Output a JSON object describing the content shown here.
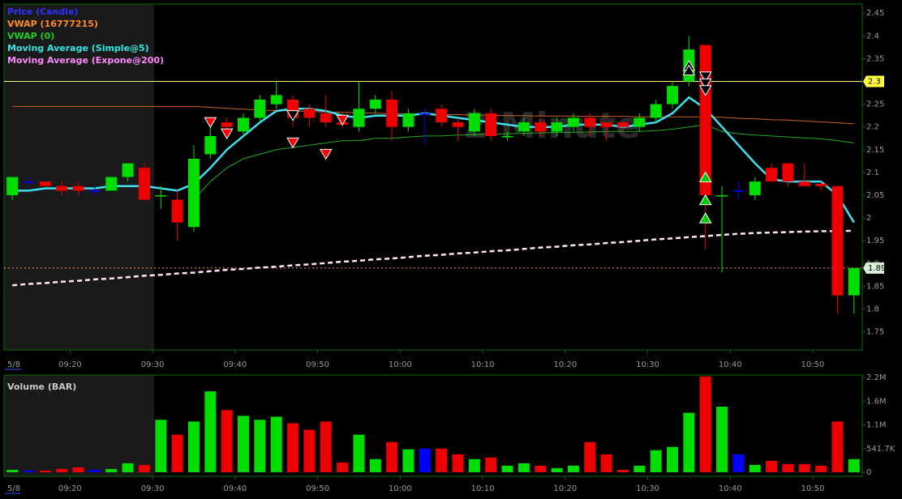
{
  "chart_data": [
    {
      "type": "candlestick",
      "watermark": "2 Minute",
      "date_label": "5/8",
      "x": [
        "09:13",
        "09:15",
        "09:17",
        "09:19",
        "09:21",
        "09:23",
        "09:25",
        "09:27",
        "09:29",
        "09:31",
        "09:33",
        "09:35",
        "09:37",
        "09:39",
        "09:41",
        "09:43",
        "09:45",
        "09:47",
        "09:49",
        "09:51",
        "09:53",
        "09:55",
        "09:57",
        "09:59",
        "10:01",
        "10:03",
        "10:05",
        "10:07",
        "10:09",
        "10:11",
        "10:13",
        "10:15",
        "10:17",
        "10:19",
        "10:21",
        "10:23",
        "10:25",
        "10:27",
        "10:29",
        "10:31",
        "10:33",
        "10:35",
        "10:37",
        "10:39",
        "10:41",
        "10:43",
        "10:45",
        "10:47",
        "10:49",
        "10:51",
        "10:53",
        "10:55"
      ],
      "xlim": [
        "09:12",
        "10:56"
      ],
      "xticks": [
        "09:20",
        "09:30",
        "09:40",
        "09:50",
        "10:00",
        "10:10",
        "10:20",
        "10:30",
        "10:40",
        "10:50"
      ],
      "ylim": [
        1.71,
        2.47
      ],
      "yticks": [
        1.75,
        1.8,
        1.85,
        1.9,
        1.95,
        2,
        2.05,
        2.1,
        2.15,
        2.2,
        2.25,
        2.3,
        2.35,
        2.4,
        2.45
      ],
      "series": [
        {
          "name": "Price (Candle)",
          "type": "candlestick",
          "color": "#3030ff",
          "open": [
            2.05,
            2.08,
            2.08,
            2.07,
            2.07,
            2.06,
            2.06,
            2.09,
            2.11,
            2.05,
            2.04,
            1.98,
            2.14,
            2.21,
            2.19,
            2.22,
            2.25,
            2.26,
            2.24,
            2.23,
            2.21,
            2.2,
            2.24,
            2.26,
            2.2,
            2.23,
            2.24,
            2.21,
            2.19,
            2.23,
            2.18,
            2.19,
            2.21,
            2.19,
            2.2,
            2.22,
            2.21,
            2.21,
            2.2,
            2.22,
            2.25,
            2.3,
            2.38,
            2.05,
            2.06,
            2.05,
            2.11,
            2.12,
            2.08,
            2.075,
            2.07,
            1.83
          ],
          "high": [
            2.09,
            2.09,
            2.08,
            2.08,
            2.08,
            2.07,
            2.09,
            2.12,
            2.12,
            2.07,
            2.06,
            2.16,
            2.2,
            2.22,
            2.23,
            2.27,
            2.3,
            2.27,
            2.25,
            2.27,
            2.22,
            2.3,
            2.27,
            2.28,
            2.24,
            2.24,
            2.25,
            2.22,
            2.24,
            2.24,
            2.19,
            2.22,
            2.22,
            2.22,
            2.23,
            2.23,
            2.21,
            2.21,
            2.23,
            2.26,
            2.3,
            2.4,
            2.38,
            2.07,
            2.08,
            2.09,
            2.12,
            2.12,
            2.12,
            2.08,
            2.07,
            1.89
          ],
          "low": [
            2.04,
            2.07,
            2.07,
            2.05,
            2.05,
            2.05,
            2.06,
            2.08,
            2.04,
            2.02,
            1.95,
            1.97,
            2.13,
            2.18,
            2.18,
            2.21,
            2.24,
            2.2,
            2.2,
            2.2,
            2.2,
            2.19,
            2.23,
            2.17,
            2.19,
            2.16,
            2.2,
            2.17,
            2.18,
            2.17,
            2.17,
            2.18,
            2.18,
            2.18,
            2.19,
            2.18,
            2.17,
            2.19,
            2.19,
            2.21,
            2.24,
            2.29,
            1.93,
            1.88,
            2.04,
            2.04,
            2.08,
            2.07,
            2.07,
            2.06,
            1.79,
            1.79
          ],
          "close": [
            2.09,
            2.08,
            2.07,
            2.06,
            2.06,
            2.06,
            2.09,
            2.12,
            2.04,
            2.05,
            1.99,
            2.13,
            2.18,
            2.2,
            2.22,
            2.26,
            2.27,
            2.22,
            2.22,
            2.21,
            2.205,
            2.24,
            2.26,
            2.2,
            2.23,
            2.23,
            2.21,
            2.2,
            2.23,
            2.18,
            2.18,
            2.21,
            2.19,
            2.21,
            2.22,
            2.2,
            2.2,
            2.2,
            2.22,
            2.25,
            2.29,
            2.37,
            2.05,
            2.05,
            2.06,
            2.08,
            2.08,
            2.08,
            2.07,
            2.07,
            1.83,
            1.89
          ],
          "colors": [
            "#00dd00",
            "#0000ff",
            "#ee0000",
            "#ee0000",
            "#ee0000",
            "#0000ff",
            "#00dd00",
            "#00dd00",
            "#ee0000",
            "#00dd00",
            "#ee0000",
            "#00dd00",
            "#00dd00",
            "#ee0000",
            "#00dd00",
            "#00dd00",
            "#00dd00",
            "#ee0000",
            "#ee0000",
            "#ee0000",
            "#ee0000",
            "#00dd00",
            "#00dd00",
            "#ee0000",
            "#00dd00",
            "#0000ff",
            "#ee0000",
            "#ee0000",
            "#00dd00",
            "#ee0000",
            "#00dd00",
            "#00dd00",
            "#ee0000",
            "#00dd00",
            "#00dd00",
            "#ee0000",
            "#ee0000",
            "#ee0000",
            "#00dd00",
            "#00dd00",
            "#00dd00",
            "#00dd00",
            "#ee0000",
            "#00dd00",
            "#0000ff",
            "#00dd00",
            "#ee0000",
            "#ee0000",
            "#ee0000",
            "#ee0000",
            "#ee0000",
            "#00dd00"
          ]
        },
        {
          "name": "VWAP (16777215)",
          "type": "line",
          "color": "#ff8c2a",
          "line_color": "#c8641e",
          "width": 1,
          "dashed": false,
          "values": [
            2.245,
            2.245,
            2.245,
            2.245,
            2.245,
            2.245,
            2.245,
            2.245,
            2.245,
            2.245,
            2.245,
            2.245,
            2.243,
            2.241,
            2.239,
            2.237,
            2.236,
            2.235,
            2.234,
            2.233,
            2.232,
            2.231,
            2.23,
            2.229,
            2.228,
            2.228,
            2.227,
            2.227,
            2.226,
            2.226,
            2.225,
            2.225,
            2.224,
            2.224,
            2.224,
            2.223,
            2.223,
            2.223,
            2.222,
            2.222,
            2.222,
            2.222,
            2.222,
            2.221,
            2.219,
            2.218,
            2.216,
            2.215,
            2.213,
            2.211,
            2.209,
            2.207
          ]
        },
        {
          "name": "VWAP (0)",
          "type": "line",
          "color": "#22cc22",
          "line_color": "#22aa22",
          "width": 1,
          "dashed": false,
          "values": [
            null,
            null,
            null,
            null,
            null,
            null,
            null,
            null,
            null,
            null,
            null,
            2.04,
            2.08,
            2.11,
            2.13,
            2.14,
            2.15,
            2.155,
            2.16,
            2.165,
            2.17,
            2.17,
            2.175,
            2.175,
            2.178,
            2.18,
            2.18,
            2.182,
            2.183,
            2.184,
            2.185,
            2.186,
            2.187,
            2.188,
            2.188,
            2.189,
            2.19,
            2.19,
            2.19,
            2.192,
            2.195,
            2.2,
            2.205,
            2.19,
            2.185,
            2.182,
            2.18,
            2.178,
            2.176,
            2.174,
            2.17,
            2.165
          ]
        },
        {
          "name": "Moving Average (Simple@5)",
          "type": "line",
          "color": "#33e6e6",
          "line_color": "#40e0f0",
          "width": 2.5,
          "dashed": false,
          "values": [
            2.06,
            2.06,
            2.065,
            2.065,
            2.065,
            2.065,
            2.07,
            2.07,
            2.07,
            2.065,
            2.06,
            2.075,
            2.11,
            2.15,
            2.18,
            2.21,
            2.235,
            2.24,
            2.24,
            2.235,
            2.225,
            2.22,
            2.225,
            2.225,
            2.225,
            2.23,
            2.225,
            2.22,
            2.215,
            2.21,
            2.205,
            2.2,
            2.2,
            2.2,
            2.205,
            2.205,
            2.205,
            2.2,
            2.205,
            2.21,
            2.23,
            2.265,
            2.24,
            2.2,
            2.16,
            2.12,
            2.085,
            2.08,
            2.08,
            2.08,
            2.05,
            1.99
          ]
        },
        {
          "name": "Moving Average (Expone@200)",
          "type": "line",
          "color": "#ff88ff",
          "line_color": "#ffe6f6",
          "width": 2.5,
          "dashed": true,
          "values": [
            1.852,
            1.855,
            1.857,
            1.86,
            1.862,
            1.865,
            1.867,
            1.87,
            1.873,
            1.875,
            1.878,
            1.88,
            1.883,
            1.886,
            1.888,
            1.891,
            1.893,
            1.896,
            1.898,
            1.901,
            1.904,
            1.906,
            1.909,
            1.911,
            1.914,
            1.917,
            1.919,
            1.922,
            1.924,
            1.927,
            1.929,
            1.932,
            1.935,
            1.937,
            1.94,
            1.942,
            1.945,
            1.947,
            1.95,
            1.953,
            1.955,
            1.958,
            1.96,
            1.963,
            1.965,
            1.967,
            1.968,
            1.969,
            1.97,
            1.971,
            1.971,
            1.972
          ]
        }
      ],
      "signals": [
        {
          "shape": "down",
          "fill": "#ff0000",
          "stroke": "#ffffff",
          "x": [
            "09:37",
            "09:39",
            "09:47",
            "09:51",
            "09:53"
          ],
          "values": [
            2.21,
            2.185,
            2.165,
            2.14,
            2.215
          ]
        },
        {
          "shape": "down",
          "fill": "#000000",
          "stroke": "#ffffff",
          "x": [
            "09:47",
            "10:37",
            "10:37",
            "10:37"
          ],
          "values": [
            2.225,
            2.31,
            2.295,
            2.28
          ]
        },
        {
          "shape": "up",
          "fill": "#000000",
          "stroke": "#ffffff",
          "x": [
            "10:35",
            "10:35"
          ],
          "values": [
            2.335,
            2.325
          ]
        },
        {
          "shape": "up",
          "fill": "#00cc00",
          "stroke": "#ffffff",
          "x": [
            "10:37",
            "10:37",
            "10:37"
          ],
          "values": [
            2.09,
            2.04,
            2.0
          ]
        }
      ],
      "hlines": [
        {
          "value": 2.3,
          "color": "#ffff80",
          "dashed": false,
          "label_bg": "#ffff40"
        },
        {
          "value": 1.89,
          "color": "#ff9060",
          "dashed": true,
          "label_bg": "#d8f0d8"
        }
      ]
    },
    {
      "type": "bar",
      "title": "Volume (BAR)",
      "date_label": "5/8",
      "x": [
        "09:13",
        "09:15",
        "09:17",
        "09:19",
        "09:21",
        "09:23",
        "09:25",
        "09:27",
        "09:29",
        "09:31",
        "09:33",
        "09:35",
        "09:37",
        "09:39",
        "09:41",
        "09:43",
        "09:45",
        "09:47",
        "09:49",
        "09:51",
        "09:53",
        "09:55",
        "09:57",
        "09:59",
        "10:01",
        "10:03",
        "10:05",
        "10:07",
        "10:09",
        "10:11",
        "10:13",
        "10:15",
        "10:17",
        "10:19",
        "10:21",
        "10:23",
        "10:25",
        "10:27",
        "10:29",
        "10:31",
        "10:33",
        "10:35",
        "10:37",
        "10:39",
        "10:41",
        "10:43",
        "10:45",
        "10:47",
        "10:49",
        "10:51",
        "10:53",
        "10:55"
      ],
      "xlim": [
        "09:12",
        "10:56"
      ],
      "xticks": [
        "09:20",
        "09:30",
        "09:40",
        "09:50",
        "10:00",
        "10:10",
        "10:20",
        "10:30",
        "10:40",
        "10:50"
      ],
      "values": [
        56000,
        37000,
        37000,
        75000,
        112000,
        56000,
        75000,
        206000,
        168000,
        1200000,
        860000,
        1160000,
        1850000,
        1420000,
        1290000,
        1200000,
        1270000,
        1120000,
        970000,
        1160000,
        224000,
        860000,
        300000,
        690000,
        524000,
        540000,
        540000,
        410000,
        300000,
        337000,
        150000,
        206000,
        150000,
        94000,
        150000,
        690000,
        410000,
        56000,
        150000,
        505000,
        580000,
        1360000,
        2190000,
        1500000,
        410000,
        168000,
        262000,
        187000,
        187000,
        150000,
        1160000,
        300000
      ],
      "colors": [
        "#00dd00",
        "#0000ff",
        "#ee0000",
        "#ee0000",
        "#ee0000",
        "#0000ff",
        "#00dd00",
        "#00dd00",
        "#ee0000",
        "#00dd00",
        "#ee0000",
        "#00dd00",
        "#00dd00",
        "#ee0000",
        "#00dd00",
        "#00dd00",
        "#00dd00",
        "#ee0000",
        "#ee0000",
        "#ee0000",
        "#ee0000",
        "#00dd00",
        "#00dd00",
        "#ee0000",
        "#00dd00",
        "#0000ff",
        "#ee0000",
        "#ee0000",
        "#00dd00",
        "#ee0000",
        "#00dd00",
        "#00dd00",
        "#ee0000",
        "#00dd00",
        "#00dd00",
        "#ee0000",
        "#ee0000",
        "#ee0000",
        "#00dd00",
        "#00dd00",
        "#00dd00",
        "#00dd00",
        "#ee0000",
        "#00dd00",
        "#0000ff",
        "#00dd00",
        "#ee0000",
        "#ee0000",
        "#ee0000",
        "#ee0000",
        "#ee0000",
        "#00dd00"
      ],
      "ylim": [
        0,
        2166800
      ],
      "yticks": [
        0,
        {
          "value": 541700,
          "label": "541.7K"
        },
        {
          "value": 1083400,
          "label": "1.1M"
        },
        {
          "value": 1625100,
          "label": "1.6M"
        },
        {
          "value": 2166800,
          "label": "2.2M"
        }
      ]
    }
  ]
}
